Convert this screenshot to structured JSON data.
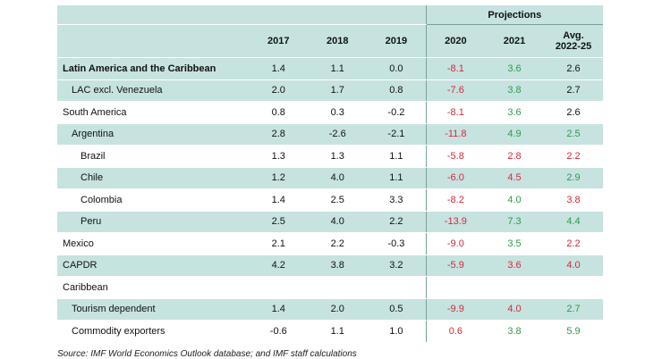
{
  "header": {
    "projections_label": "Projections",
    "years": [
      "2017",
      "2018",
      "2019",
      "2020",
      "2021"
    ],
    "avg_label_line1": "Avg.",
    "avg_label_line2": "2022-25"
  },
  "rows": [
    {
      "label": "Latin America and the Caribbean",
      "bold": true,
      "indent": 0,
      "v": [
        "1.4",
        "1.1",
        "0.0",
        "-8.1",
        "3.6",
        "2.6"
      ]
    },
    {
      "label": "LAC excl. Venezuela",
      "bold": false,
      "indent": 1,
      "v": [
        "2.0",
        "1.7",
        "0.8",
        "-7.6",
        "3.8",
        "2.7"
      ]
    },
    {
      "label": "South America",
      "bold": false,
      "indent": 0,
      "v": [
        "0.8",
        "0.3",
        "-0.2",
        "-8.1",
        "3.6",
        "2.6"
      ]
    },
    {
      "label": "Argentina",
      "bold": false,
      "indent": 1,
      "v": [
        "2.8",
        "-2.6",
        "-2.1",
        "-11.8",
        "4.9",
        "2.5"
      ]
    },
    {
      "label": "Brazil",
      "bold": false,
      "indent": 2,
      "v": [
        "1.3",
        "1.3",
        "1.1",
        "-5.8",
        "2.8",
        "2.2"
      ]
    },
    {
      "label": "Chile",
      "bold": false,
      "indent": 2,
      "v": [
        "1.2",
        "4.0",
        "1.1",
        "-6.0",
        "4.5",
        "2.9"
      ]
    },
    {
      "label": "Colombia",
      "bold": false,
      "indent": 2,
      "v": [
        "1.4",
        "2.5",
        "3.3",
        "-8.2",
        "4.0",
        "3.8"
      ]
    },
    {
      "label": "Peru",
      "bold": false,
      "indent": 2,
      "v": [
        "2.5",
        "4.0",
        "2.2",
        "-13.9",
        "7.3",
        "4.4"
      ]
    },
    {
      "label": "Mexico",
      "bold": false,
      "indent": 0,
      "v": [
        "2.1",
        "2.2",
        "-0.3",
        "-9.0",
        "3.5",
        "2.2"
      ]
    },
    {
      "label": "CAPDR",
      "bold": false,
      "indent": 0,
      "v": [
        "4.2",
        "3.8",
        "3.2",
        "-5.9",
        "3.6",
        "4.0"
      ]
    },
    {
      "label": "Caribbean",
      "bold": false,
      "indent": 0,
      "v": [
        "",
        "",
        "",
        "",
        "",
        ""
      ]
    },
    {
      "label": "Tourism dependent",
      "bold": false,
      "indent": 1,
      "v": [
        "1.4",
        "2.0",
        "0.5",
        "-9.9",
        "4.0",
        "2.7"
      ]
    },
    {
      "label": "Commodity exporters",
      "bold": false,
      "indent": 1,
      "v": [
        "-0.6",
        "1.1",
        "1.0",
        "0.6",
        "3.8",
        "5.9"
      ]
    }
  ],
  "colors": {
    "c2020": [
      "red",
      "red",
      "red",
      "red",
      "red",
      "red",
      "red",
      "red",
      "red",
      "red",
      "",
      "red",
      "red"
    ],
    "c2021": [
      "green",
      "green",
      "green",
      "green",
      "red",
      "red",
      "green",
      "green",
      "green",
      "red",
      "",
      "red",
      "green"
    ],
    "cavg": [
      "blk",
      "blk",
      "blk",
      "green",
      "red",
      "green",
      "red",
      "green",
      "red",
      "red",
      "",
      "green",
      "green"
    ]
  },
  "source": "Source: IMF World Economics Outlook database; and IMF staff calculations"
}
